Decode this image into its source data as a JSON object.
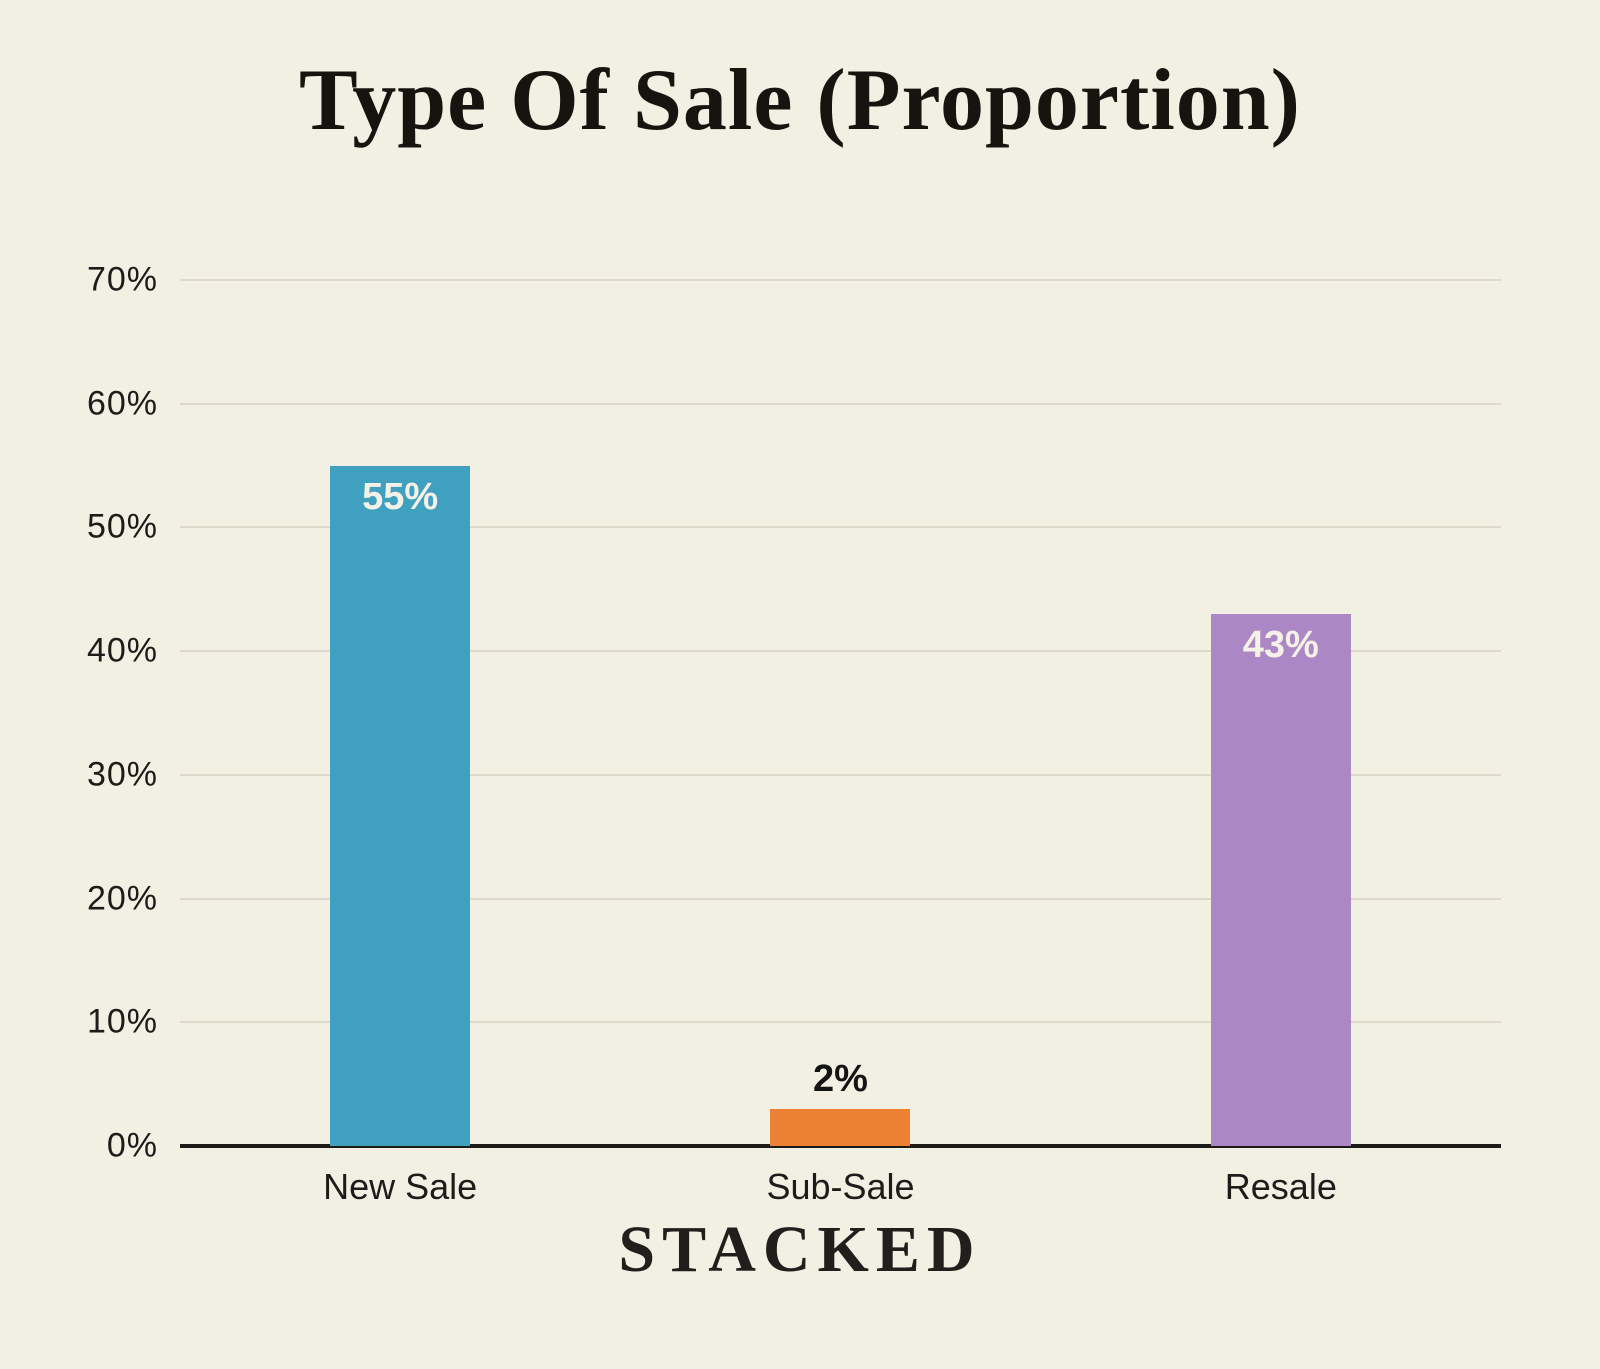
{
  "title": "Type Of Sale (Proportion)",
  "footer": {
    "brand": "STACKED"
  },
  "colors": {
    "background": "#f2efe3",
    "gridline": "#ded9cb",
    "axis": "#1c1b18",
    "text": "#1d1c1a",
    "value_label_light": "#f5f1e6",
    "value_label_dark": "#141414"
  },
  "chart_data": {
    "type": "bar",
    "title": "Type Of Sale (Proportion)",
    "categories": [
      "New Sale",
      "Sub-Sale",
      "Resale"
    ],
    "values": [
      55,
      2,
      43
    ],
    "value_labels": [
      "55%",
      "2%",
      "43%"
    ],
    "bar_colors": [
      "#40a0c0",
      "#ec8133",
      "#ab87c5"
    ],
    "bar_display_heights_pct": [
      55,
      3,
      43
    ],
    "value_label_placement": [
      "inside",
      "above",
      "inside"
    ],
    "xlabel": "",
    "ylabel": "",
    "ylim": [
      0,
      70
    ],
    "yticks": [
      "0%",
      "10%",
      "20%",
      "30%",
      "40%",
      "50%",
      "60%",
      "70%"
    ],
    "grid": true,
    "legend": false
  }
}
